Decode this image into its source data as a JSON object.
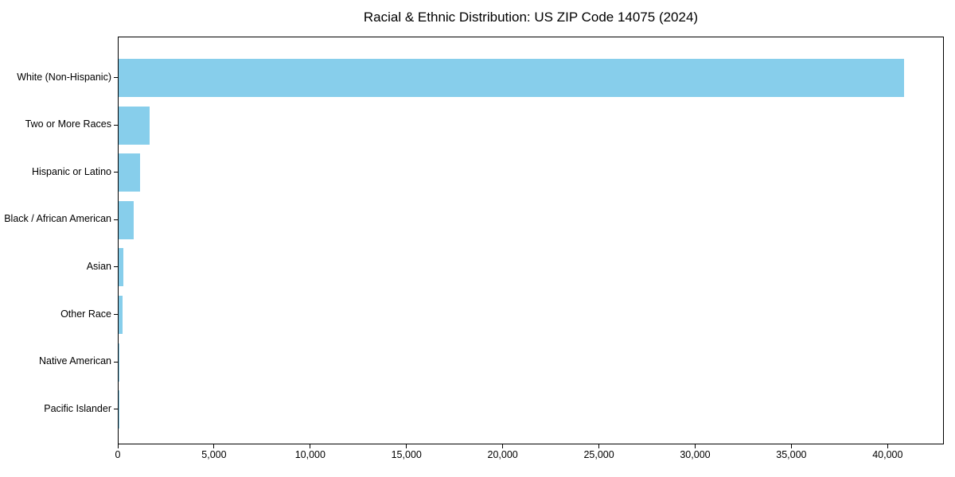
{
  "chart_data": {
    "type": "bar",
    "orientation": "horizontal",
    "title": "Racial & Ethnic Distribution: US ZIP Code 14075 (2024)",
    "categories": [
      "White (Non-Hispanic)",
      "Two or More Races",
      "Hispanic or Latino",
      "Black / African American",
      "Asian",
      "Other Race",
      "Native American",
      "Pacific Islander"
    ],
    "values": [
      40800,
      1600,
      1100,
      770,
      260,
      190,
      60,
      10
    ],
    "xlabel": "",
    "ylabel": "",
    "xlim": [
      0,
      42840
    ],
    "x_ticks": [
      0,
      5000,
      10000,
      15000,
      20000,
      25000,
      30000,
      35000,
      40000
    ],
    "x_tick_labels": [
      "0",
      "5,000",
      "10,000",
      "15,000",
      "20,000",
      "25,000",
      "30,000",
      "35,000",
      "40,000"
    ],
    "bar_color": "#87ceeb",
    "axis_color": "#000000",
    "background_color": "#ffffff",
    "grid": false,
    "legend": null
  }
}
